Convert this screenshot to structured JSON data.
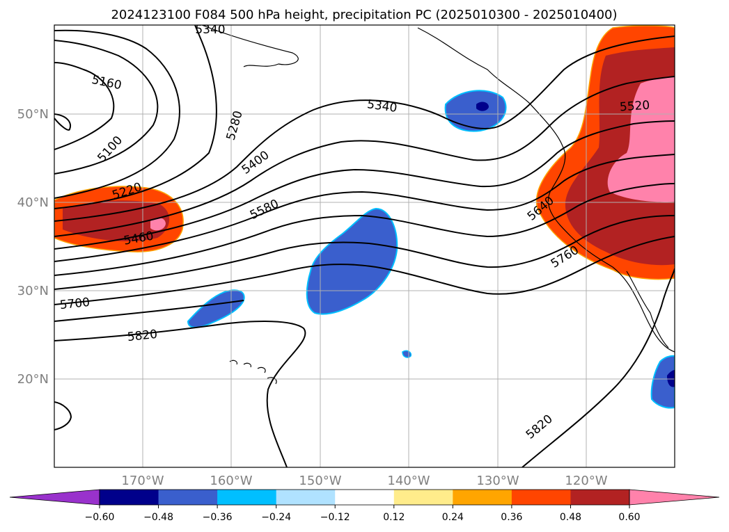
{
  "title": "2024123100 F084 500 hPa height, precipitation PC (2025010300 - 2025010400)",
  "lat_labels": [
    "50°N",
    "40°N",
    "30°N",
    "20°N"
  ],
  "lon_labels": [
    "170°W",
    "160°W",
    "150°W",
    "140°W",
    "130°W",
    "120°W"
  ],
  "contour_labels": [
    "5340",
    "5160",
    "5100",
    "5280",
    "5220",
    "5400",
    "5460",
    "5580",
    "5700",
    "5820",
    "5340",
    "5520",
    "5640",
    "5760",
    "5820"
  ],
  "colorbar": {
    "ticks": [
      "−0.60",
      "−0.48",
      "−0.36",
      "−0.24",
      "−0.12",
      "0.12",
      "0.24",
      "0.36",
      "0.48",
      "0.60"
    ],
    "colors": [
      "#9932cc",
      "#00008b",
      "#3a5fcd",
      "#00bfff",
      "#b0e2ff",
      "#ffffff",
      "#ffec8b",
      "#ffa500",
      "#ff4500",
      "#b22222",
      "#ff82ab"
    ]
  },
  "colors": {
    "neg_strong": "#00008b",
    "neg_mid": "#3a5fcd",
    "neg_light": "#00bfff",
    "pos_orange": "#ff4500",
    "pos_red": "#b22222",
    "pos_pink": "#ff82ab"
  }
}
